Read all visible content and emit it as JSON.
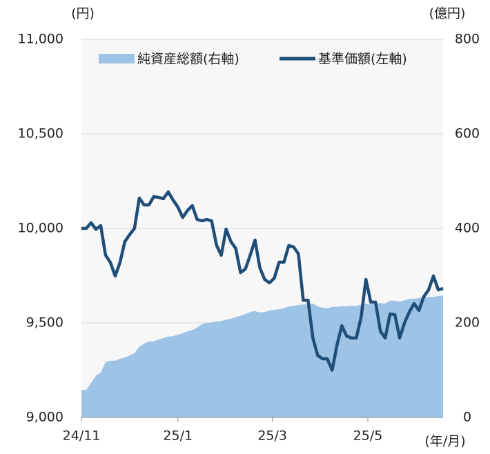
{
  "chart_data": {
    "type": "line-area",
    "y_unit": "(円)",
    "y2_unit": "(億円)",
    "x_unit": "(年/月)",
    "x": [
      0,
      1,
      2,
      3,
      4,
      5,
      6,
      7,
      8,
      9,
      10,
      11,
      12,
      13,
      14,
      15,
      16,
      17,
      18,
      19,
      20,
      21,
      22,
      23,
      24,
      25,
      26,
      27,
      28,
      29,
      30,
      31,
      32,
      33,
      34,
      35,
      36,
      37,
      38,
      39,
      40,
      41,
      42,
      43,
      44,
      45,
      46,
      47,
      48,
      49,
      50,
      51,
      52,
      53,
      54,
      55,
      56,
      57,
      58,
      59,
      60,
      61,
      62,
      63,
      64,
      65,
      66,
      67,
      68,
      69,
      70,
      71,
      72,
      73,
      74,
      75
    ],
    "xlim": [
      0,
      75
    ],
    "xticks": [
      {
        "value": 0,
        "label": "24/11"
      },
      {
        "value": 20,
        "label": "25/1"
      },
      {
        "value": 39.6,
        "label": "25/3"
      },
      {
        "value": 59.4,
        "label": "25/5"
      }
    ],
    "series": [
      {
        "name": "純資産総額(右軸)",
        "color": "#9dc3e6",
        "kind": "area",
        "axis": "y2",
        "values": [
          58,
          58,
          73,
          88,
          95,
          117,
          120,
          120,
          124,
          127,
          131,
          136,
          150,
          156,
          161,
          161,
          165,
          168,
          171,
          172,
          175,
          178,
          182,
          185,
          190,
          197,
          200,
          201,
          203,
          204,
          207,
          209,
          212,
          215,
          219,
          223,
          225,
          222,
          223,
          226,
          228,
          229,
          231,
          235,
          236,
          238,
          239,
          239,
          241,
          235,
          232,
          231,
          234,
          234,
          235,
          235,
          236,
          236,
          239,
          241,
          239,
          241,
          242,
          241,
          247,
          247,
          245,
          248,
          251,
          251,
          253,
          254,
          255,
          255,
          257,
          258
        ]
      },
      {
        "name": "基準価額(左軸)",
        "color": "#1f4e79",
        "kind": "line",
        "axis": "y",
        "values": [
          10000,
          10000,
          10030,
          9995,
          10015,
          9858,
          9820,
          9748,
          9820,
          9930,
          9967,
          10000,
          10160,
          10124,
          10124,
          10168,
          10164,
          10157,
          10193,
          10150,
          10113,
          10058,
          10095,
          10120,
          10047,
          10040,
          10047,
          10040,
          9912,
          9858,
          9996,
          9930,
          9894,
          9766,
          9785,
          9858,
          9938,
          9792,
          9730,
          9712,
          9737,
          9821,
          9821,
          9909,
          9902,
          9865,
          9620,
          9620,
          9420,
          9328,
          9310,
          9310,
          9250,
          9383,
          9485,
          9430,
          9420,
          9420,
          9529,
          9730,
          9610,
          9610,
          9456,
          9420,
          9547,
          9544,
          9420,
          9500,
          9558,
          9602,
          9566,
          9639,
          9675,
          9748,
          9675,
          9682
        ]
      }
    ],
    "ylim": [
      9000,
      11000
    ],
    "yticks": [
      {
        "value": 9000,
        "label": "9,000"
      },
      {
        "value": 9500,
        "label": "9,500"
      },
      {
        "value": 10000,
        "label": "10,000"
      },
      {
        "value": 10500,
        "label": "10,500"
      },
      {
        "value": 11000,
        "label": "11,000"
      }
    ],
    "y2lim": [
      0,
      800
    ],
    "y2ticks": [
      0,
      200,
      400,
      600,
      800
    ],
    "grid": true,
    "legend": "top"
  }
}
